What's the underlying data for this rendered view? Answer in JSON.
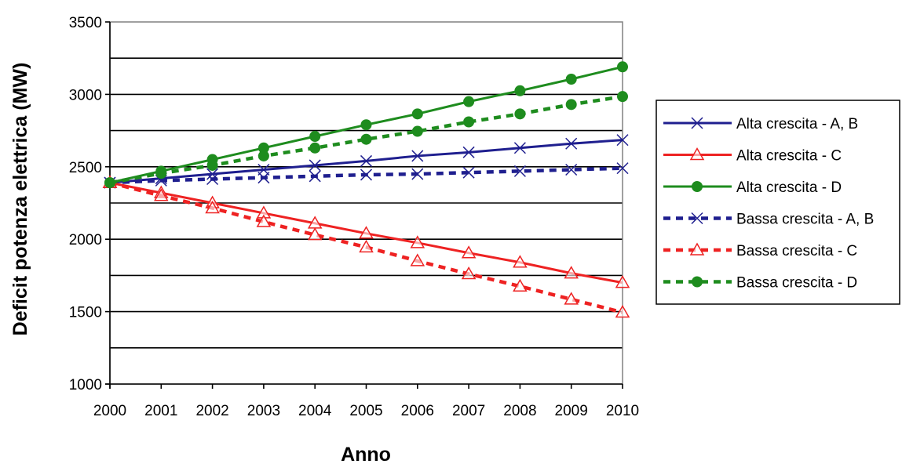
{
  "chart_data": {
    "type": "line",
    "xlabel": "Anno",
    "ylabel": "Deficit potenza elettrica (MW)",
    "xlim": [
      2000,
      2010
    ],
    "ylim": [
      1000,
      3500
    ],
    "yticks": [
      1000,
      1500,
      2000,
      2500,
      3000,
      3500
    ],
    "xticks": [
      2000,
      2001,
      2002,
      2003,
      2004,
      2005,
      2006,
      2007,
      2008,
      2009,
      2010
    ],
    "grid": true,
    "legend_position": "right",
    "x": [
      2000,
      2001,
      2002,
      2003,
      2004,
      2005,
      2006,
      2007,
      2008,
      2009,
      2010
    ],
    "series": [
      {
        "name": "Alta crescita - A, B",
        "color": "#1f1f8f",
        "dash": "solid",
        "marker": "x",
        "values": [
          2390,
          2420,
          2450,
          2480,
          2510,
          2540,
          2575,
          2600,
          2630,
          2660,
          2685
        ]
      },
      {
        "name": "Alta crescita - C",
        "color": "#ee2222",
        "dash": "solid",
        "marker": "triangle",
        "values": [
          2390,
          2320,
          2250,
          2180,
          2110,
          2040,
          1975,
          1905,
          1840,
          1765,
          1700
        ]
      },
      {
        "name": "Alta crescita - D",
        "color": "#1e8c1e",
        "dash": "solid",
        "marker": "circle",
        "values": [
          2390,
          2470,
          2550,
          2630,
          2710,
          2790,
          2865,
          2950,
          3025,
          3105,
          3190
        ]
      },
      {
        "name": "Bassa crescita - A, B",
        "color": "#1f1f8f",
        "dash": "dashed",
        "marker": "x",
        "values": [
          2390,
          2405,
          2415,
          2425,
          2435,
          2445,
          2450,
          2460,
          2470,
          2480,
          2490
        ]
      },
      {
        "name": "Bassa crescita - C",
        "color": "#ee2222",
        "dash": "dashed",
        "marker": "triangle",
        "values": [
          2390,
          2300,
          2215,
          2120,
          2030,
          1945,
          1850,
          1760,
          1675,
          1585,
          1495
        ]
      },
      {
        "name": "Bassa crescita - D",
        "color": "#1e8c1e",
        "dash": "dashed",
        "marker": "circle",
        "values": [
          2390,
          2455,
          2510,
          2575,
          2630,
          2690,
          2745,
          2810,
          2865,
          2930,
          2985
        ]
      }
    ]
  }
}
